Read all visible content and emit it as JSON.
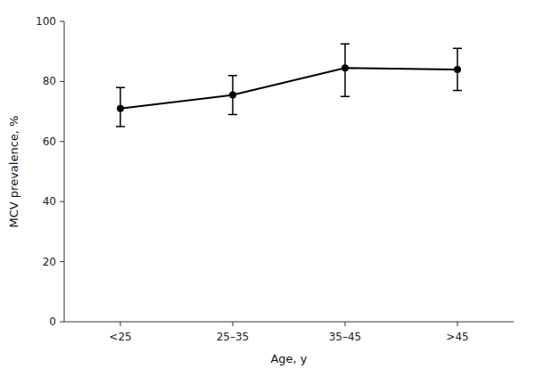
{
  "chart_data": {
    "type": "line",
    "xlabel": "Age, y",
    "ylabel": "MCV prevalence, %",
    "categories": [
      "<25",
      "25–35",
      "35–45",
      ">45"
    ],
    "values": [
      71.0,
      75.5,
      84.5,
      84.0
    ],
    "error_lower": [
      6.0,
      6.5,
      9.5,
      7.0
    ],
    "error_upper": [
      7.0,
      6.5,
      8.0,
      7.0
    ],
    "color": "#000000",
    "marker": "circle",
    "line_style": "solid",
    "ylim": [
      0,
      100
    ],
    "yticks": [
      0,
      20,
      40,
      60,
      80,
      100
    ],
    "grid": false
  }
}
